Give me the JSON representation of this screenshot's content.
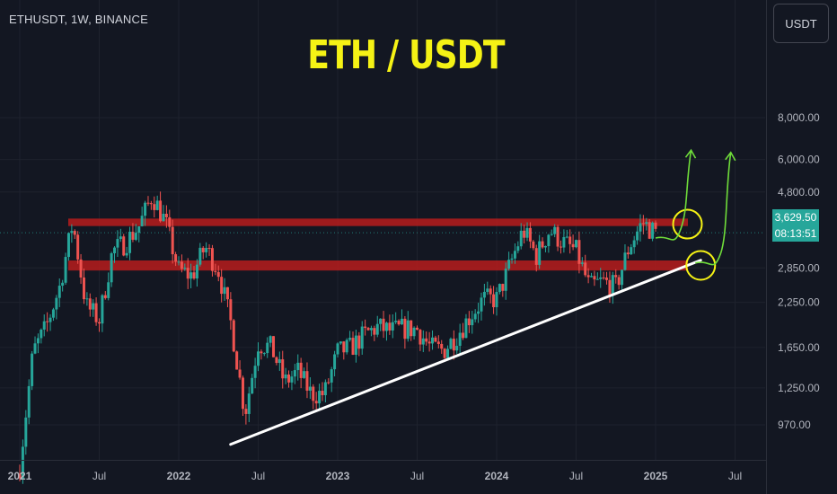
{
  "header": {
    "symbol": "ETHUSDT, 1W, BINANCE",
    "headline": "ETH / USDT"
  },
  "currency_button": "USDT",
  "price_tag": {
    "price": "3,629.50",
    "countdown": "08:13:51",
    "color": "#26a69a"
  },
  "colors": {
    "background": "#131722",
    "up": "#26a69a",
    "down": "#ef5350",
    "zone": "#b71c1c",
    "trendline": "#ffffff",
    "circles": "#f5f215",
    "arrows": "#6fdc3a",
    "headline": "#f5f215"
  },
  "chart_data": {
    "type": "candlestick",
    "y_scale": "log",
    "y_ticks": [
      "970.00",
      "1,250.00",
      "1,650.00",
      "2,250.00",
      "2,850.00",
      "4,800.00",
      "6,000.00",
      "8,000.00"
    ],
    "y_tick_values": [
      970,
      1250,
      1650,
      2250,
      2850,
      4800,
      6000,
      8000
    ],
    "x_ticks": [
      "2021",
      "Jul",
      "2022",
      "Jul",
      "2023",
      "Jul",
      "2024",
      "Jul",
      "2025",
      "Jul"
    ],
    "x_tick_dates": [
      "2021-01",
      "2021-07",
      "2022-01",
      "2022-07",
      "2023-01",
      "2023-07",
      "2024-01",
      "2024-07",
      "2025-01",
      "2025-07"
    ],
    "last_price": 3629.5,
    "resistance_zone": [
      3800,
      4000
    ],
    "support_zone": [
      2800,
      3000
    ],
    "trendline": {
      "start": [
        "2022-06",
        880
      ],
      "end": [
        "2025-04",
        2950
      ]
    },
    "price_path": [
      [
        "2021-01",
        730
      ],
      [
        "2021-02",
        1600
      ],
      [
        "2021-03",
        1900
      ],
      [
        "2021-04",
        2500
      ],
      [
        "2021-05",
        3900
      ],
      [
        "2021-06",
        2200
      ],
      [
        "2021-07",
        2000
      ],
      [
        "2021-08",
        3200
      ],
      [
        "2021-09",
        3400
      ],
      [
        "2021-10",
        3800
      ],
      [
        "2021-11",
        4700
      ],
      [
        "2021-12",
        3900
      ],
      [
        "2022-01",
        2800
      ],
      [
        "2022-02",
        2700
      ],
      [
        "2022-03",
        3300
      ],
      [
        "2022-04",
        2800
      ],
      [
        "2022-05",
        1900
      ],
      [
        "2022-06",
        1050
      ],
      [
        "2022-07",
        1700
      ],
      [
        "2022-08",
        1650
      ],
      [
        "2022-09",
        1300
      ],
      [
        "2022-10",
        1400
      ],
      [
        "2022-11",
        1200
      ],
      [
        "2022-12",
        1200
      ],
      [
        "2023-01",
        1600
      ],
      [
        "2023-02",
        1650
      ],
      [
        "2023-03",
        1800
      ],
      [
        "2023-04",
        1900
      ],
      [
        "2023-05",
        1850
      ],
      [
        "2023-06",
        1880
      ],
      [
        "2023-07",
        1870
      ],
      [
        "2023-08",
        1650
      ],
      [
        "2023-09",
        1620
      ],
      [
        "2023-10",
        1800
      ],
      [
        "2023-11",
        2050
      ],
      [
        "2023-12",
        2300
      ],
      [
        "2024-01",
        2300
      ],
      [
        "2024-02",
        2900
      ],
      [
        "2024-03",
        3700
      ],
      [
        "2024-04",
        3100
      ],
      [
        "2024-05",
        3700
      ],
      [
        "2024-06",
        3400
      ],
      [
        "2024-07",
        3200
      ],
      [
        "2024-08",
        2500
      ],
      [
        "2024-09",
        2600
      ],
      [
        "2024-10",
        2500
      ],
      [
        "2024-11",
        3300
      ],
      [
        "2024-12",
        3900
      ],
      [
        "2025-01",
        3629.5
      ]
    ],
    "annotations": [
      {
        "kind": "circle",
        "at": [
          "2025-03",
          3850
        ]
      },
      {
        "kind": "circle",
        "at": [
          "2025-04",
          2900
        ]
      },
      {
        "kind": "arrow",
        "from": [
          "2025-01",
          3500
        ],
        "to": [
          "2025-03",
          6400
        ]
      },
      {
        "kind": "arrow",
        "from": [
          "2025-04",
          2950
        ],
        "to": [
          "2025-06",
          6300
        ]
      }
    ]
  }
}
